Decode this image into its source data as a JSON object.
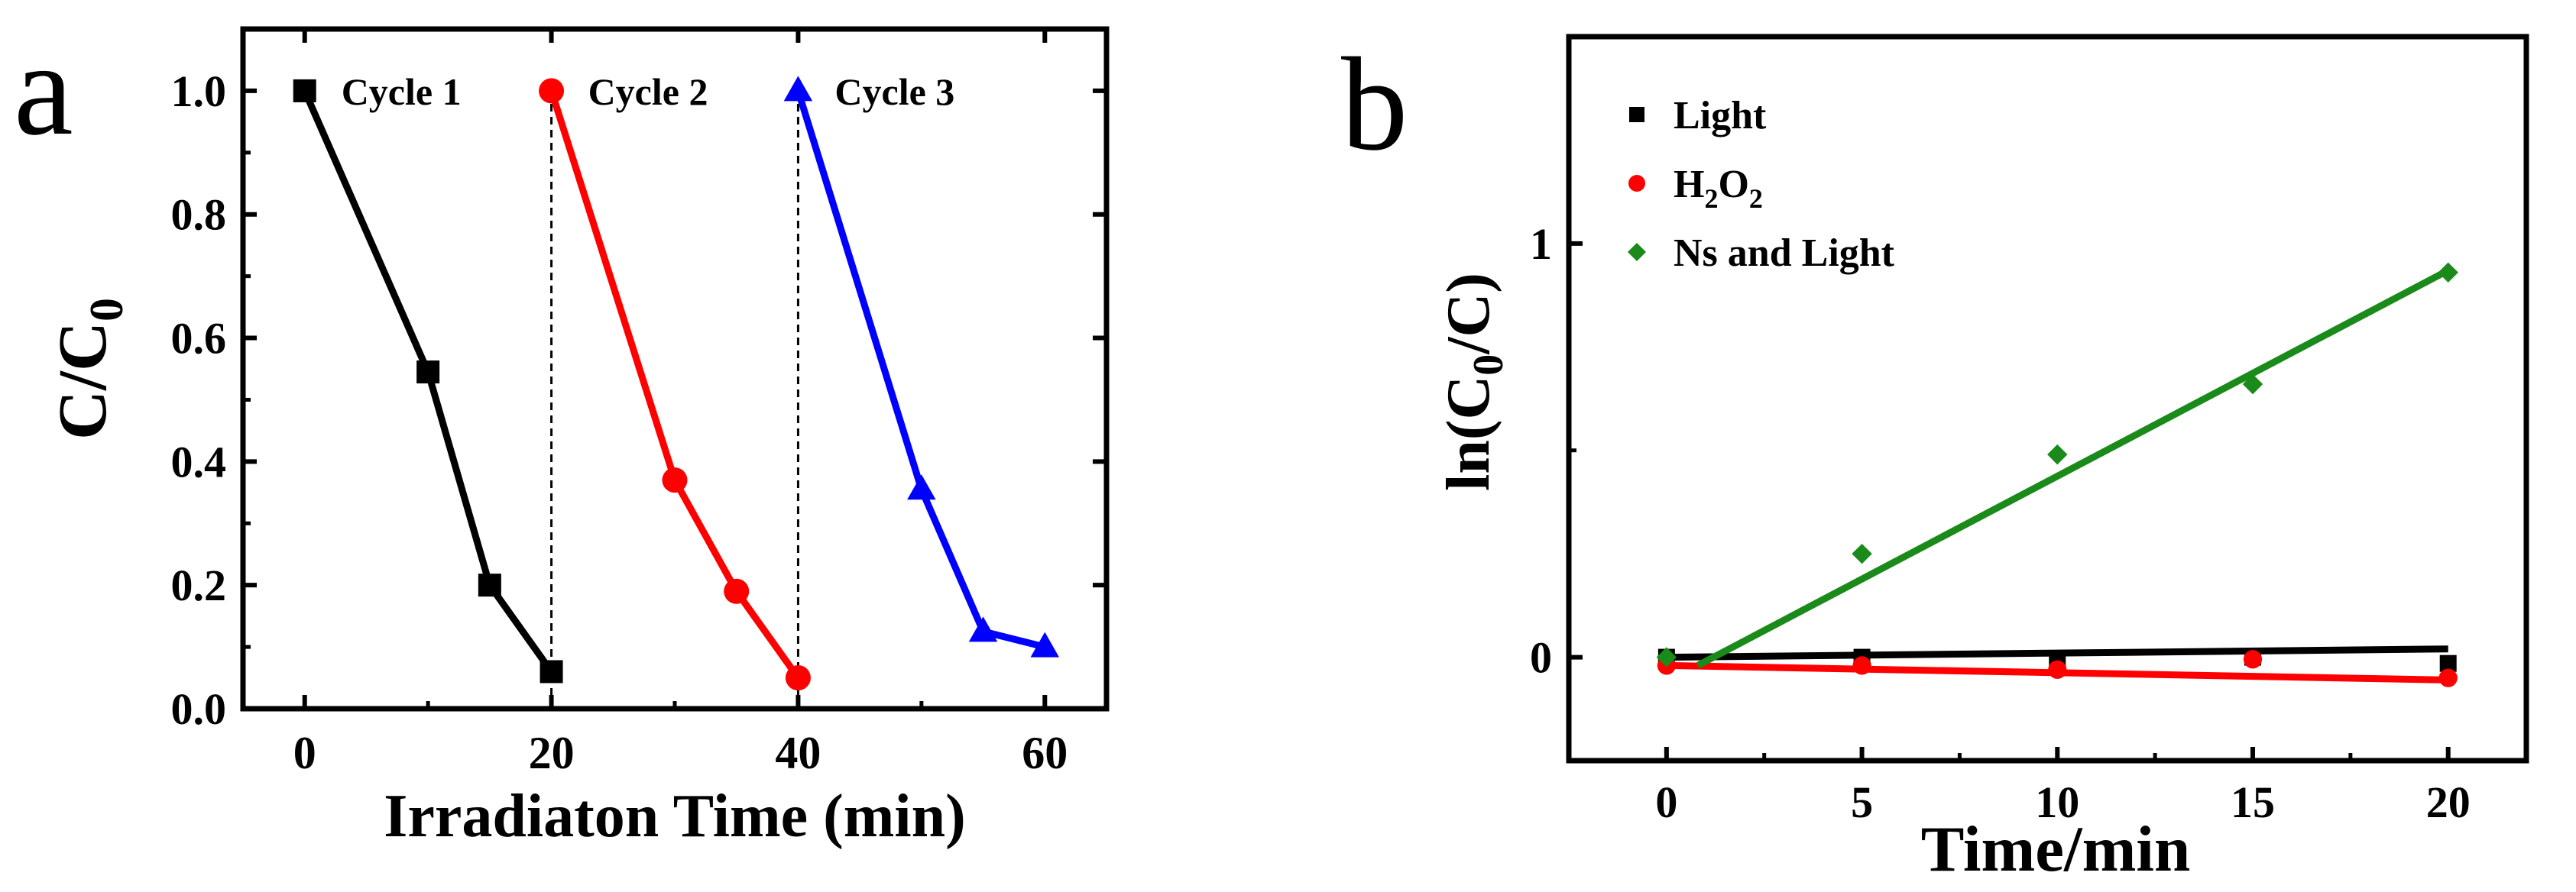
{
  "chart_data": [
    {
      "panel": "a",
      "type": "line",
      "xlabel": "Irradiaton Time (min)",
      "ylabel_main": "C/C",
      "ylabel_sub": "0",
      "xlim": [
        -5,
        65
      ],
      "ylim": [
        0.0,
        1.1
      ],
      "xticks": [
        0,
        20,
        40,
        60
      ],
      "xtick_labels": [
        "0",
        "20",
        "40",
        "60"
      ],
      "yticks": [
        0.0,
        0.2,
        0.4,
        0.6,
        0.8,
        1.0
      ],
      "ytick_labels": [
        "0.0",
        "0.2",
        "0.4",
        "0.6",
        "0.8",
        "1.0"
      ],
      "dividers_x": [
        20,
        40
      ],
      "series": [
        {
          "name": "Cycle 1",
          "color": "#000000",
          "marker": "square",
          "x": [
            0,
            10,
            15,
            20
          ],
          "y": [
            1.0,
            0.545,
            0.2,
            0.06
          ]
        },
        {
          "name": "Cycle 2",
          "color": "#ff0000",
          "marker": "circle",
          "x": [
            20,
            30,
            35,
            40
          ],
          "y": [
            1.0,
            0.37,
            0.19,
            0.05
          ]
        },
        {
          "name": "Cycle 3",
          "color": "#0000ff",
          "marker": "triangle",
          "x": [
            40,
            50,
            55,
            60
          ],
          "y": [
            1.0,
            0.355,
            0.125,
            0.1
          ]
        }
      ]
    },
    {
      "panel": "b",
      "type": "scatter",
      "xlabel": "Time/min",
      "ylabel_pre": "ln(C",
      "ylabel_sub": "0",
      "ylabel_post": "/C)",
      "xlim": [
        -2.5,
        22
      ],
      "ylim": [
        -0.25,
        1.5
      ],
      "xticks": [
        0,
        5,
        10,
        15,
        20
      ],
      "xtick_labels": [
        "0",
        "5",
        "10",
        "15",
        "20"
      ],
      "yticks": [
        0,
        1
      ],
      "ytick_labels": [
        "0",
        "1"
      ],
      "series": [
        {
          "name": "Light",
          "color": "#000000",
          "marker": "square",
          "x": [
            0,
            5,
            10,
            15,
            20
          ],
          "y": [
            0.0,
            0.0,
            -0.01,
            0.0,
            -0.015
          ],
          "fit": [
            [
              0,
              0.0
            ],
            [
              20,
              0.02
            ]
          ]
        },
        {
          "name": "H2O2",
          "label_parts": [
            "H",
            "2",
            "O",
            "2"
          ],
          "color": "#ff0000",
          "marker": "circle",
          "x": [
            0,
            5,
            10,
            15,
            20
          ],
          "y": [
            -0.02,
            -0.02,
            -0.03,
            -0.005,
            -0.05
          ],
          "fit": [
            [
              0,
              -0.02
            ],
            [
              20,
              -0.055
            ]
          ]
        },
        {
          "name": "Ns and Light",
          "color": "#1a8a1a",
          "marker": "diamond",
          "x": [
            0,
            5,
            10,
            15,
            20
          ],
          "y": [
            0.0,
            0.25,
            0.49,
            0.66,
            0.93
          ],
          "fit": [
            [
              0.8,
              -0.02
            ],
            [
              20,
              0.935
            ]
          ]
        }
      ]
    }
  ]
}
